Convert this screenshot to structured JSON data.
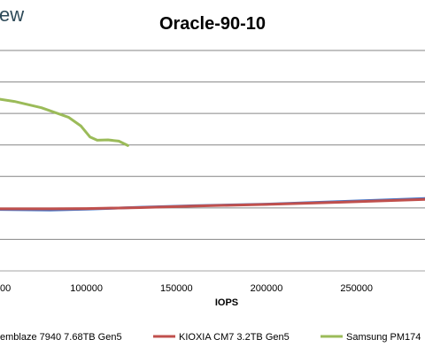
{
  "brand": "ew",
  "chart_data": {
    "type": "line",
    "title": "Oracle-90-10",
    "xlabel": "IOPS",
    "ylabel": "",
    "xlim": [
      52000,
      288000
    ],
    "ylim": [
      0,
      7
    ],
    "x_ticks": [
      100000,
      150000,
      200000,
      250000
    ],
    "x_tick_labels": [
      "100000",
      "150000",
      "200000",
      "250000"
    ],
    "partial_tick_label": "00",
    "grid": true,
    "legend_position": "bottom",
    "series": [
      {
        "name": "emblaze 7940 7.68TB Gen5",
        "color": "#4472c4",
        "x": [
          52000,
          80000,
          100000,
          130000,
          160000,
          200000,
          240000,
          288000
        ],
        "y": [
          1.95,
          1.93,
          1.96,
          2.02,
          2.07,
          2.12,
          2.2,
          2.3
        ]
      },
      {
        "name": "KIOXIA CM7 3.2TB Gen5",
        "color": "#c0504d",
        "x": [
          52000,
          80000,
          100000,
          130000,
          160000,
          200000,
          240000,
          288000
        ],
        "y": [
          1.97,
          1.97,
          1.98,
          2.01,
          2.06,
          2.11,
          2.18,
          2.27
        ]
      },
      {
        "name": "Samsung PM174",
        "color": "#9bbb59",
        "x": [
          52000,
          60000,
          75000,
          90000,
          97000,
          102000,
          106000,
          112000,
          118000,
          123000
        ],
        "y": [
          5.45,
          5.38,
          5.18,
          4.88,
          4.6,
          4.25,
          4.15,
          4.16,
          4.12,
          3.98
        ]
      }
    ]
  }
}
